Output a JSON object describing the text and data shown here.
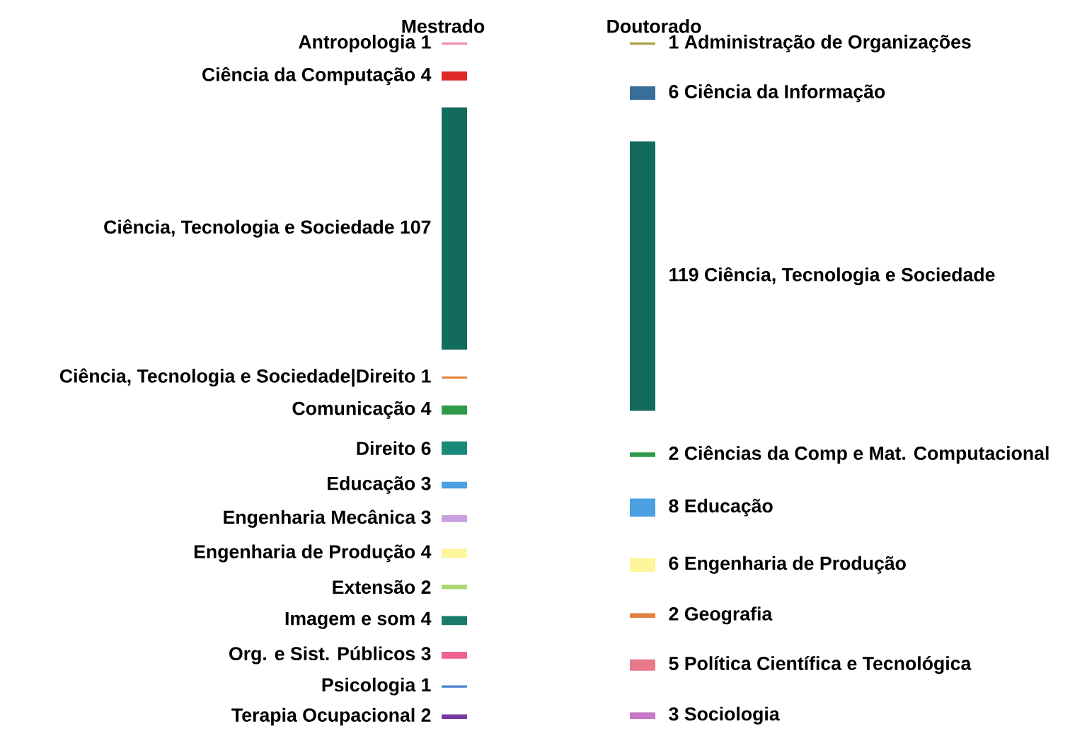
{
  "chart_data": [
    {
      "type": "other",
      "title": "Mestrado",
      "data_labels": true,
      "categories": [
        "Antropologia",
        "Ciência da Computação",
        "Ciência, Tecnologia e Sociedade",
        "Ciência, Tecnologia e Sociedade|Direito",
        "Comunicação",
        "Direito",
        "Educação",
        "Engenharia Mecânica",
        "Engenharia de Produção",
        "Extensão",
        "Imagem e som",
        "Org. e Sist. Públicos",
        "Psicologia",
        "Terapia Ocupacional"
      ],
      "values": [
        1,
        4,
        107,
        1,
        4,
        6,
        3,
        3,
        4,
        2,
        4,
        3,
        1,
        2
      ],
      "colors": [
        "#f08cb0",
        "#e02828",
        "#136b5e",
        "#e8803a",
        "#2e9a4a",
        "#1a8a7a",
        "#4aa0e0",
        "#c8a0e0",
        "#fff59a",
        "#a8d870",
        "#1a7a6a",
        "#f06090",
        "#4a80d0",
        "#7a3aa0"
      ]
    },
    {
      "type": "other",
      "title": "Doutorado",
      "data_labels": true,
      "categories": [
        "Administração de Organizações",
        "Ciência da Informação",
        "Ciência, Tecnologia e Sociedade",
        "Ciências da Comp e Mat. Computacional",
        "Educação",
        "Engenharia de Produção",
        "Geografia",
        "Política Científica e Tecnológica",
        "Sociologia"
      ],
      "values": [
        1,
        6,
        119,
        2,
        8,
        6,
        2,
        5,
        3
      ],
      "colors": [
        "#a8a040",
        "#3a6e9a",
        "#136b5e",
        "#2e9a4a",
        "#4aa0e0",
        "#fff59a",
        "#e08040",
        "#e87a8a",
        "#c878c8"
      ]
    }
  ]
}
